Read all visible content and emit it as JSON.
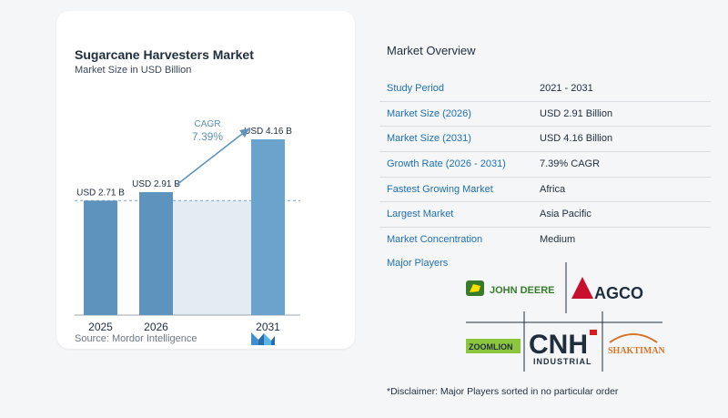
{
  "chart_data": {
    "type": "bar",
    "title": "Sugarcane Harvesters Market",
    "subtitle": "Market Size in USD Billion",
    "categories": [
      "2025",
      "2026",
      "2031"
    ],
    "values": [
      2.71,
      2.91,
      4.16
    ],
    "value_labels": [
      "USD 2.71 B",
      "USD 2.91 B",
      "USD 4.16 B"
    ],
    "cagr_label": "CAGR",
    "cagr_value": "7.39%",
    "bar_color": "#5e93bd",
    "bar_color_highlight": "#6aa3cc",
    "band_color": "#e3ecf3",
    "ylim": [
      0,
      4.16
    ],
    "grid": false
  },
  "source": "Source:  Mordor Intelligence",
  "overview": {
    "title": "Market Overview",
    "rows": [
      {
        "label": "Study Period",
        "value": "2021 - 2031"
      },
      {
        "label": "Market Size (2026)",
        "value": "USD 2.91 Billion"
      },
      {
        "label": "Market Size (2031)",
        "value": "USD 4.16 Billion"
      },
      {
        "label": "Growth Rate (2026 - 2031)",
        "value": "7.39% CAGR"
      },
      {
        "label": "Fastest Growing Market",
        "value": "Africa"
      },
      {
        "label": "Largest Market",
        "value": "Asia Pacific"
      },
      {
        "label": "Market Concentration",
        "value": "Medium"
      }
    ],
    "players_title": "Major Players",
    "players": [
      "JOHN DEERE",
      "AGCO",
      "ZOOMLION",
      "CNH",
      "INDUSTRIAL",
      "SHAKTIMAN"
    ],
    "disclaimer": "*Disclaimer: Major Players sorted in no particular order"
  },
  "colors": {
    "accent_blue": "#1e6fb3",
    "john_deere_green": "#367c2b",
    "john_deere_yellow": "#ffde00",
    "agco_red": "#c8102e",
    "zoomlion_green": "#8cc63f",
    "cnh_red": "#d71920",
    "shaktiman_orange": "#d9752b"
  }
}
